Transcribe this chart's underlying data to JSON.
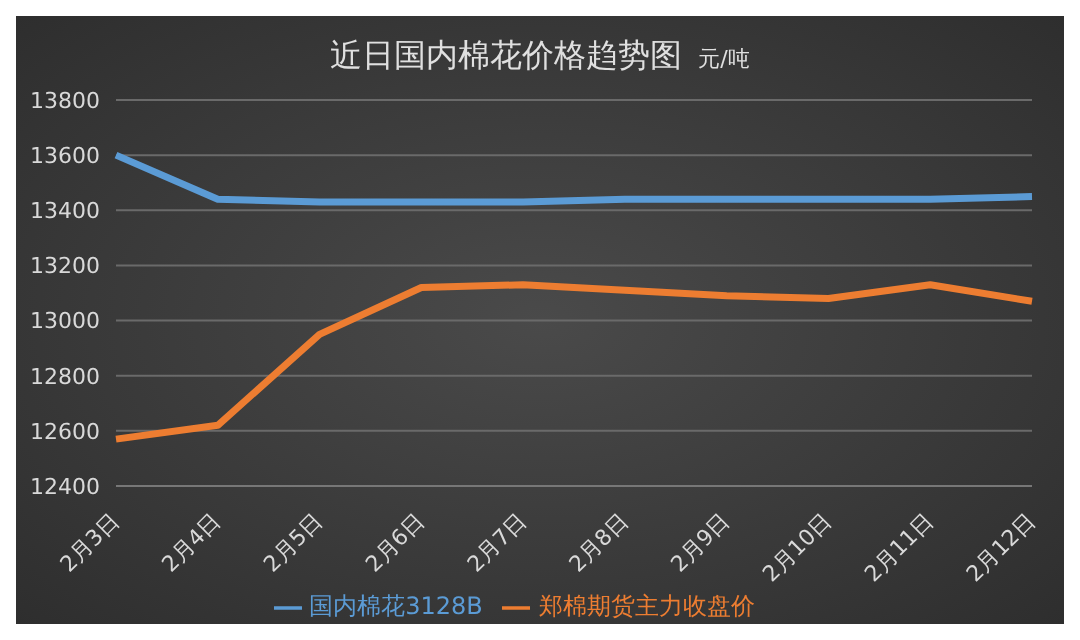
{
  "chart_data": {
    "type": "line",
    "title": "近日国内棉花价格趋势图",
    "subtitle": "元/吨",
    "categories": [
      "2月3日",
      "2月4日",
      "2月5日",
      "2月6日",
      "2月7日",
      "2月8日",
      "2月9日",
      "2月10日",
      "2月11日",
      "2月12日"
    ],
    "series": [
      {
        "name": "国内棉花3128B",
        "color": "#5b9bd5",
        "values": [
          13600,
          13440,
          13430,
          13430,
          13430,
          13440,
          13440,
          13440,
          13440,
          13450
        ]
      },
      {
        "name": "郑棉期货主力收盘价",
        "color": "#ed7d31",
        "values": [
          12570,
          12620,
          12950,
          13120,
          13130,
          13110,
          13090,
          13080,
          13130,
          13070
        ]
      }
    ],
    "ylim": [
      12400,
      13800
    ],
    "yticks": [
      12400,
      12600,
      12800,
      13000,
      13200,
      13400,
      13600,
      13800
    ],
    "grid": "y",
    "legend": "bottom",
    "marker": "none",
    "line_style": "solid"
  }
}
